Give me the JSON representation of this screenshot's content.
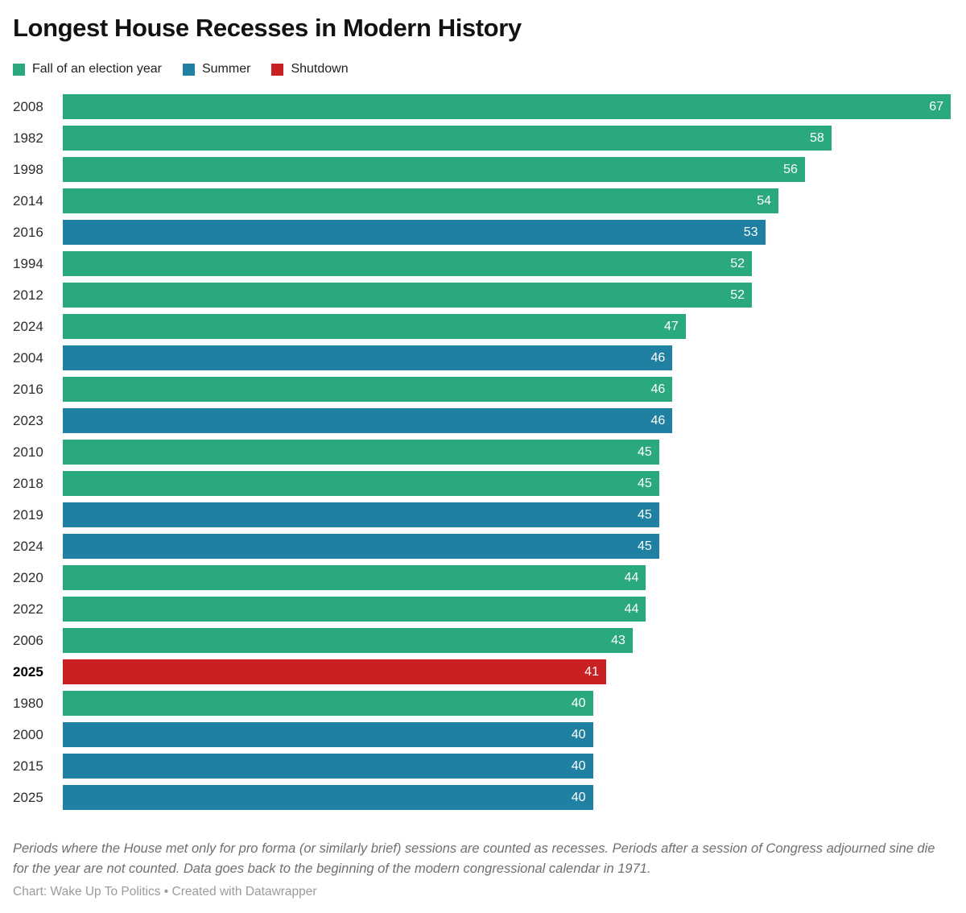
{
  "title": "Longest House Recesses in Modern History",
  "legend": {
    "items": [
      {
        "label": "Fall of an election year",
        "color": "#2aa87e"
      },
      {
        "label": "Summer",
        "color": "#1f80a1"
      },
      {
        "label": "Shutdown",
        "color": "#c92121"
      }
    ]
  },
  "chart_data": {
    "type": "bar",
    "orientation": "horizontal",
    "title": "Longest House Recesses in Modern History",
    "xlabel": "",
    "ylabel": "",
    "xlim": [
      0,
      67
    ],
    "grid": false,
    "legend_position": "top",
    "categories": [
      "2008",
      "1982",
      "1998",
      "2014",
      "2016",
      "1994",
      "2012",
      "2024",
      "2004",
      "2016",
      "2023",
      "2010",
      "2018",
      "2019",
      "2024",
      "2020",
      "2022",
      "2006",
      "2025",
      "1980",
      "2000",
      "2015",
      "2025"
    ],
    "values": [
      67,
      58,
      56,
      54,
      53,
      52,
      52,
      47,
      46,
      46,
      46,
      45,
      45,
      45,
      45,
      44,
      44,
      43,
      41,
      40,
      40,
      40,
      40
    ],
    "series_names": [
      "Fall of an election year",
      "Summer",
      "Shutdown"
    ],
    "bars": [
      {
        "year": "2008",
        "value": 67,
        "series": "Fall of an election year",
        "color": "#2aa87e",
        "bold": false
      },
      {
        "year": "1982",
        "value": 58,
        "series": "Fall of an election year",
        "color": "#2aa87e",
        "bold": false
      },
      {
        "year": "1998",
        "value": 56,
        "series": "Fall of an election year",
        "color": "#2aa87e",
        "bold": false
      },
      {
        "year": "2014",
        "value": 54,
        "series": "Fall of an election year",
        "color": "#2aa87e",
        "bold": false
      },
      {
        "year": "2016",
        "value": 53,
        "series": "Summer",
        "color": "#1f80a1",
        "bold": false
      },
      {
        "year": "1994",
        "value": 52,
        "series": "Fall of an election year",
        "color": "#2aa87e",
        "bold": false
      },
      {
        "year": "2012",
        "value": 52,
        "series": "Fall of an election year",
        "color": "#2aa87e",
        "bold": false
      },
      {
        "year": "2024",
        "value": 47,
        "series": "Fall of an election year",
        "color": "#2aa87e",
        "bold": false
      },
      {
        "year": "2004",
        "value": 46,
        "series": "Summer",
        "color": "#1f80a1",
        "bold": false
      },
      {
        "year": "2016",
        "value": 46,
        "series": "Fall of an election year",
        "color": "#2aa87e",
        "bold": false
      },
      {
        "year": "2023",
        "value": 46,
        "series": "Summer",
        "color": "#1f80a1",
        "bold": false
      },
      {
        "year": "2010",
        "value": 45,
        "series": "Fall of an election year",
        "color": "#2aa87e",
        "bold": false
      },
      {
        "year": "2018",
        "value": 45,
        "series": "Fall of an election year",
        "color": "#2aa87e",
        "bold": false
      },
      {
        "year": "2019",
        "value": 45,
        "series": "Summer",
        "color": "#1f80a1",
        "bold": false
      },
      {
        "year": "2024",
        "value": 45,
        "series": "Summer",
        "color": "#1f80a1",
        "bold": false
      },
      {
        "year": "2020",
        "value": 44,
        "series": "Fall of an election year",
        "color": "#2aa87e",
        "bold": false
      },
      {
        "year": "2022",
        "value": 44,
        "series": "Fall of an election year",
        "color": "#2aa87e",
        "bold": false
      },
      {
        "year": "2006",
        "value": 43,
        "series": "Fall of an election year",
        "color": "#2aa87e",
        "bold": false
      },
      {
        "year": "2025",
        "value": 41,
        "series": "Shutdown",
        "color": "#c92121",
        "bold": true
      },
      {
        "year": "1980",
        "value": 40,
        "series": "Fall of an election year",
        "color": "#2aa87e",
        "bold": false
      },
      {
        "year": "2000",
        "value": 40,
        "series": "Summer",
        "color": "#1f80a1",
        "bold": false
      },
      {
        "year": "2015",
        "value": 40,
        "series": "Summer",
        "color": "#1f80a1",
        "bold": false
      },
      {
        "year": "2025",
        "value": 40,
        "series": "Summer",
        "color": "#1f80a1",
        "bold": false
      }
    ]
  },
  "notes": "Periods where the House met only for pro forma (or similarly brief) sessions are counted as recesses. Periods after a session of Congress adjourned sine die for the year are not counted. Data goes back to the beginning of the modern congressional calendar in 1971.",
  "credit": "Chart: Wake Up To Politics • Created with Datawrapper"
}
